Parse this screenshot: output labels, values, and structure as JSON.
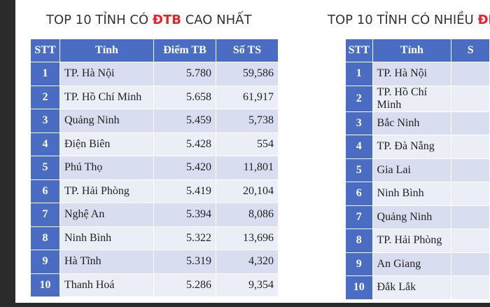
{
  "left": {
    "title": {
      "before": "TOP 10 TỈNH CÓ",
      "highlight": "ĐTB",
      "after": "CAO NHẤT"
    },
    "header": [
      "STT",
      "Tỉnh",
      "Điểm TB",
      "Số TS"
    ],
    "rows": [
      [
        "1",
        "TP. Hà Nội",
        "5.780",
        "59,586"
      ],
      [
        "2",
        "TP. Hồ Chí Minh",
        "5.658",
        "61,917"
      ],
      [
        "3",
        "Quảng Ninh",
        "5.459",
        "5,738"
      ],
      [
        "4",
        "Điện Biên",
        "5.428",
        "554"
      ],
      [
        "5",
        "Phú Thọ",
        "5.420",
        "11,801"
      ],
      [
        "6",
        "TP. Hải Phòng",
        "5.419",
        "20,104"
      ],
      [
        "7",
        "Nghệ An",
        "5.394",
        "8,086"
      ],
      [
        "8",
        "Ninh Bình",
        "5.322",
        "13,696"
      ],
      [
        "9",
        "Hà Tĩnh",
        "5.319",
        "4,320"
      ],
      [
        "10",
        "Thanh Hoá",
        "5.286",
        "9,354"
      ]
    ]
  },
  "right": {
    "title": {
      "before": "TOP 10 TỈNH CÓ NHIỀU",
      "highlight": "ĐIỂ"
    },
    "header": [
      "STT",
      "Tỉnh",
      "S"
    ],
    "rows": [
      [
        "1",
        "TP. Hà Nội"
      ],
      [
        "2",
        "TP. Hồ Chí Minh"
      ],
      [
        "3",
        "Bắc Ninh"
      ],
      [
        "4",
        "TP. Đà Nẵng"
      ],
      [
        "5",
        "Gia Lai"
      ],
      [
        "6",
        "Ninh Bình"
      ],
      [
        "7",
        "Quảng Ninh"
      ],
      [
        "8",
        "TP. Hải Phòng"
      ],
      [
        "9",
        "An Giang"
      ],
      [
        "10",
        "Đắk Lắk"
      ]
    ]
  }
}
